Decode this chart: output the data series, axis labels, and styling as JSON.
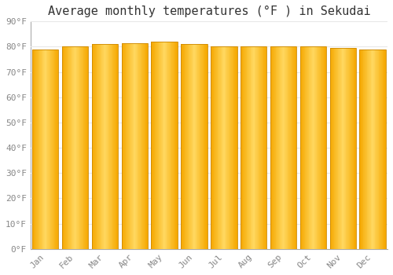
{
  "title": "Average monthly temperatures (°F ) in Sekudai",
  "months": [
    "Jan",
    "Feb",
    "Mar",
    "Apr",
    "May",
    "Jun",
    "Jul",
    "Aug",
    "Sep",
    "Oct",
    "Nov",
    "Dec"
  ],
  "values": [
    79,
    80,
    81,
    81.5,
    82,
    81,
    80,
    80,
    80,
    80,
    79.5,
    79
  ],
  "ylim": [
    0,
    90
  ],
  "yticks": [
    0,
    10,
    20,
    30,
    40,
    50,
    60,
    70,
    80,
    90
  ],
  "ytick_labels": [
    "0°F",
    "10°F",
    "20°F",
    "30°F",
    "40°F",
    "50°F",
    "60°F",
    "70°F",
    "80°F",
    "90°F"
  ],
  "bar_edge_color": "#F5A800",
  "bar_center_color": "#FFD860",
  "bar_mid_color": "#FFBF00",
  "background_color": "#FFFFFF",
  "plot_bg_color": "#FFFFFF",
  "grid_color": "#E8E8E8",
  "title_fontsize": 11,
  "tick_fontsize": 8,
  "font_family": "monospace",
  "tick_color": "#888888",
  "spine_color": "#AAAAAA"
}
